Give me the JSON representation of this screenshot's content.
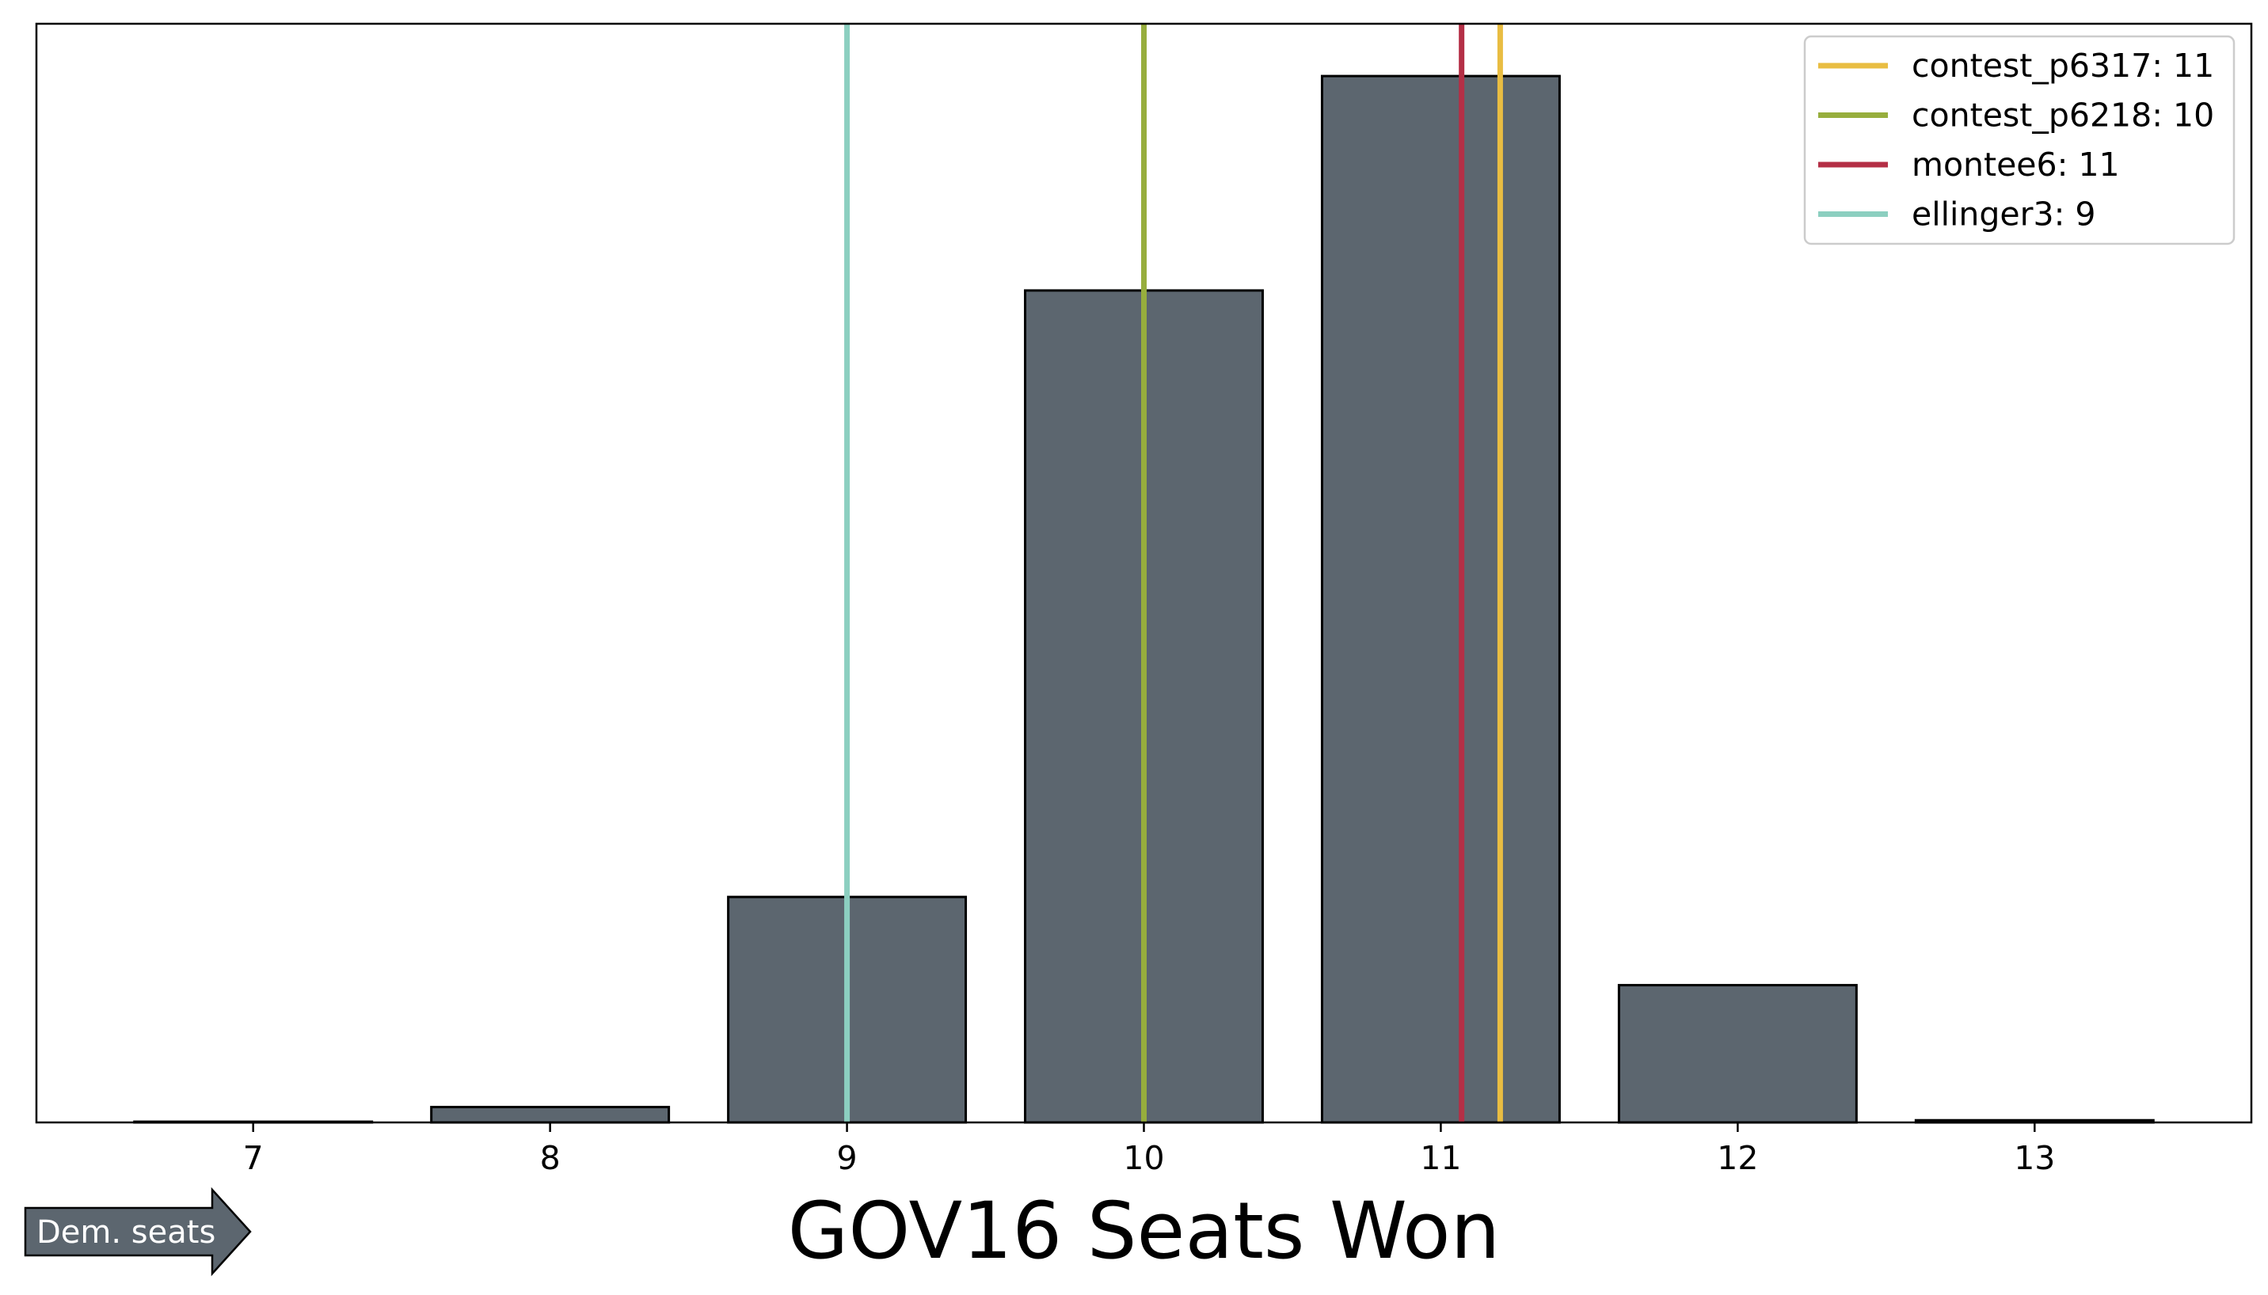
{
  "chart_data": {
    "type": "bar",
    "title": "",
    "xlabel": "GOV16 Seats Won",
    "ylabel": "",
    "categories": [
      7,
      8,
      9,
      10,
      11,
      12,
      13
    ],
    "values": [
      0.0007,
      0.0147,
      0.2155,
      0.7951,
      1.0,
      0.1312,
      0.0021
    ],
    "ylim": [
      0,
      1.05
    ],
    "xlim": [
      6.27,
      13.73
    ],
    "y_ticks_visible": false,
    "grid": false,
    "legend_position": "top-right",
    "bar_color": "#5c666f",
    "bar_edge_color": "#000000",
    "reference_lines": [
      {
        "label": "contest_p6317: 11",
        "x": 11.2,
        "color": "#e9bd42"
      },
      {
        "label": "contest_p6218: 10",
        "x": 10.0,
        "color": "#97ae3d"
      },
      {
        "label": "montee6: 11",
        "x": 11.07,
        "color": "#b42f46"
      },
      {
        "label": "ellinger3: 9",
        "x": 9.0,
        "color": "#8ccfc0"
      }
    ],
    "arrow_annotation": {
      "text": "Dem. seats",
      "color": "#5c666f"
    }
  }
}
